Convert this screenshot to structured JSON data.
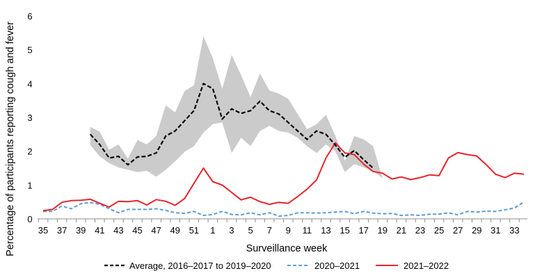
{
  "chart_data": {
    "type": "line",
    "title": "",
    "xlabel": "Surveillance week",
    "ylabel": "Percentage of participants reporting cough and fever",
    "ylim": [
      0,
      6
    ],
    "yticks": [
      "0",
      "1",
      "2",
      "3",
      "4",
      "5",
      "6"
    ],
    "weeks": [
      35,
      36,
      37,
      38,
      39,
      40,
      41,
      42,
      43,
      44,
      45,
      46,
      47,
      48,
      49,
      50,
      51,
      52,
      1,
      2,
      3,
      4,
      5,
      6,
      7,
      8,
      9,
      10,
      11,
      12,
      13,
      14,
      15,
      16,
      17,
      18,
      19,
      20,
      21,
      22,
      23,
      24,
      25,
      26,
      27,
      28,
      29,
      30,
      31,
      32,
      33,
      34
    ],
    "xtick_labels": [
      "35",
      "37",
      "39",
      "41",
      "43",
      "45",
      "47",
      "49",
      "51",
      "1",
      "3",
      "5",
      "7",
      "9",
      "11",
      "13",
      "15",
      "17",
      "19",
      "21",
      "23",
      "25",
      "27",
      "29",
      "31",
      "33"
    ],
    "band": {
      "start_index": 5,
      "upper": [
        2.72,
        2.58,
        2.05,
        2.2,
        1.78,
        2.33,
        2.2,
        2.45,
        3.36,
        3.15,
        3.78,
        3.95,
        5.4,
        4.75,
        3.85,
        4.85,
        4.25,
        3.6,
        4.3,
        3.8,
        3.7,
        3.55,
        3.1,
        2.65,
        2.8,
        3.08,
        2.45,
        1.72,
        2.45,
        2.35,
        2.15,
        1.2
      ],
      "lower": [
        2.18,
        1.85,
        1.65,
        1.52,
        1.45,
        1.38,
        1.42,
        1.25,
        1.45,
        1.7,
        1.98,
        2.15,
        2.55,
        2.8,
        2.85,
        1.95,
        2.4,
        2.15,
        2.6,
        2.75,
        2.6,
        2.55,
        2.4,
        2.15,
        1.95,
        2.2,
        2.0,
        1.38,
        1.62,
        1.52,
        1.42,
        1.2
      ],
      "color": "#cbcbcb"
    },
    "series": [
      {
        "name": "Average, 2016–2017 to 2019–2020",
        "color": "#000000",
        "dash": "dashed",
        "start_index": 5,
        "values": [
          2.5,
          2.2,
          1.8,
          1.85,
          1.6,
          1.83,
          1.85,
          1.95,
          2.45,
          2.6,
          2.9,
          3.2,
          4.0,
          3.85,
          2.95,
          3.25,
          3.12,
          3.2,
          3.48,
          3.2,
          3.1,
          2.85,
          2.6,
          2.35,
          2.6,
          2.5,
          2.18,
          1.82,
          2.02,
          1.75,
          1.5
        ]
      },
      {
        "name": "2020–2021",
        "color": "#5b9bd5",
        "dash": "dashed",
        "start_index": 0,
        "values": [
          0.22,
          0.22,
          0.38,
          0.3,
          0.45,
          0.48,
          0.43,
          0.3,
          0.18,
          0.28,
          0.28,
          0.28,
          0.3,
          0.25,
          0.18,
          0.16,
          0.22,
          0.1,
          0.13,
          0.22,
          0.13,
          0.12,
          0.18,
          0.12,
          0.18,
          0.08,
          0.1,
          0.18,
          0.18,
          0.17,
          0.18,
          0.2,
          0.22,
          0.15,
          0.22,
          0.17,
          0.15,
          0.16,
          0.1,
          0.12,
          0.1,
          0.14,
          0.14,
          0.18,
          0.12,
          0.22,
          0.2,
          0.23,
          0.22,
          0.27,
          0.32,
          0.5
        ]
      },
      {
        "name": "2021–2022",
        "color": "#e8232a",
        "dash": "solid",
        "start_index": 0,
        "values": [
          0.24,
          0.28,
          0.49,
          0.54,
          0.55,
          0.58,
          0.46,
          0.35,
          0.52,
          0.51,
          0.54,
          0.41,
          0.57,
          0.52,
          0.4,
          0.6,
          1.05,
          1.5,
          1.1,
          1.0,
          0.78,
          0.56,
          0.64,
          0.51,
          0.43,
          0.49,
          0.46,
          0.66,
          0.88,
          1.15,
          1.8,
          2.25,
          1.95,
          1.9,
          1.62,
          1.4,
          1.35,
          1.18,
          1.24,
          1.16,
          1.22,
          1.3,
          1.28,
          1.8,
          1.96,
          1.9,
          1.86,
          1.6,
          1.32,
          1.22,
          1.35,
          1.32
        ]
      }
    ]
  }
}
